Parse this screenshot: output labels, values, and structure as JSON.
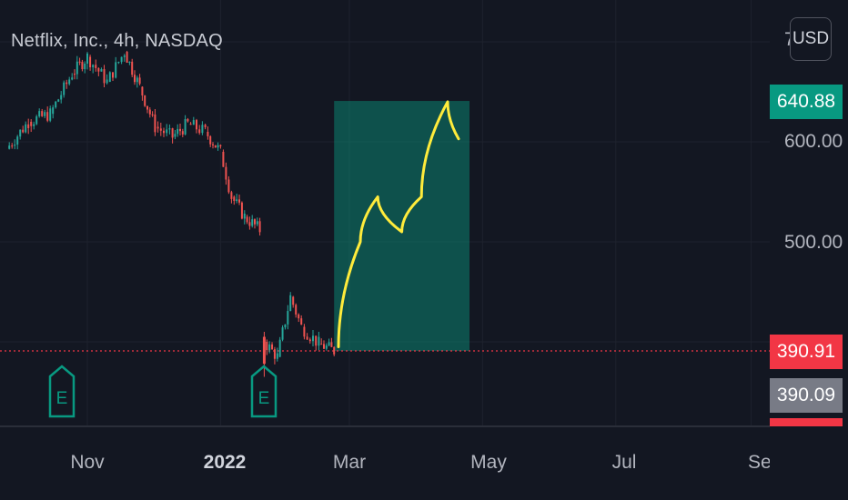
{
  "header": {
    "symbol_title": "Netflix, Inc., 4h, NASDAQ"
  },
  "currency_button": {
    "label": "USD"
  },
  "price_axis": {
    "top_partial_label": "7",
    "labels": [
      {
        "value": 600,
        "text": "600.00"
      },
      {
        "value": 500,
        "text": "500.00"
      }
    ],
    "target_price": {
      "value": 640.88,
      "text": "640.88",
      "color": "#089981"
    },
    "last_price": {
      "value": 390.91,
      "text": "390.91",
      "color": "#f23645"
    },
    "prev_close": {
      "value": 390.09,
      "text": "390.09",
      "color": "#787b86"
    }
  },
  "time_axis": {
    "labels": [
      {
        "text": "Nov",
        "bold": false
      },
      {
        "text": "2022",
        "bold": true
      },
      {
        "text": "Mar",
        "bold": false
      },
      {
        "text": "May",
        "bold": false
      },
      {
        "text": "Jul",
        "bold": false
      },
      {
        "text": "Sep",
        "bold": false
      }
    ]
  },
  "earnings_markers": [
    {
      "label": "E",
      "color": "#089981"
    },
    {
      "label": "E",
      "color": "#089981"
    }
  ],
  "chart_data": {
    "type": "candlestick",
    "title": "Netflix, Inc., 4h, NASDAQ",
    "currency": "USD",
    "y_axis_range": [
      340,
      725
    ],
    "x_axis_range": [
      "2021-09-25",
      "2022-09-01"
    ],
    "grid": true,
    "series": [
      {
        "name": "",
        "description": "price path shown as candles",
        "points": [
          {
            "date": "2021-09-25",
            "close": 593
          },
          {
            "date": "2021-10-05",
            "close": 620
          },
          {
            "date": "2021-10-15",
            "close": 628
          },
          {
            "date": "2021-10-25",
            "close": 668
          },
          {
            "date": "2021-11-01",
            "close": 685
          },
          {
            "date": "2021-11-10",
            "close": 660
          },
          {
            "date": "2021-11-18",
            "close": 690
          },
          {
            "date": "2021-11-25",
            "close": 655
          },
          {
            "date": "2021-12-02",
            "close": 615
          },
          {
            "date": "2021-12-10",
            "close": 605
          },
          {
            "date": "2021-12-17",
            "close": 618
          },
          {
            "date": "2021-12-25",
            "close": 610
          },
          {
            "date": "2022-01-01",
            "close": 590
          },
          {
            "date": "2022-01-06",
            "close": 545
          },
          {
            "date": "2022-01-12",
            "close": 525
          },
          {
            "date": "2022-01-19",
            "close": 512
          },
          {
            "date": "2022-01-21",
            "close": 400
          },
          {
            "date": "2022-01-27",
            "close": 385
          },
          {
            "date": "2022-02-02",
            "close": 445
          },
          {
            "date": "2022-02-07",
            "close": 415
          },
          {
            "date": "2022-02-15",
            "close": 398
          },
          {
            "date": "2022-02-22",
            "close": 391
          }
        ]
      }
    ],
    "projection_box": {
      "start": "2022-02-22",
      "end": "2022-04-25",
      "low": 390.91,
      "high": 640.88,
      "color": "#089981"
    },
    "projection_arrow": {
      "color": "#ffeb3b",
      "points": [
        {
          "date": "2022-02-24",
          "price": 395
        },
        {
          "date": "2022-03-06",
          "price": 500
        },
        {
          "date": "2022-03-14",
          "price": 545
        },
        {
          "date": "2022-03-25",
          "price": 510
        },
        {
          "date": "2022-04-03",
          "price": 545
        },
        {
          "date": "2022-04-15",
          "price": 640
        },
        {
          "date": "2022-04-20",
          "price": 603
        }
      ]
    },
    "horizontal_line": {
      "price": 390.91,
      "style": "dotted",
      "color": "#f23645"
    }
  }
}
